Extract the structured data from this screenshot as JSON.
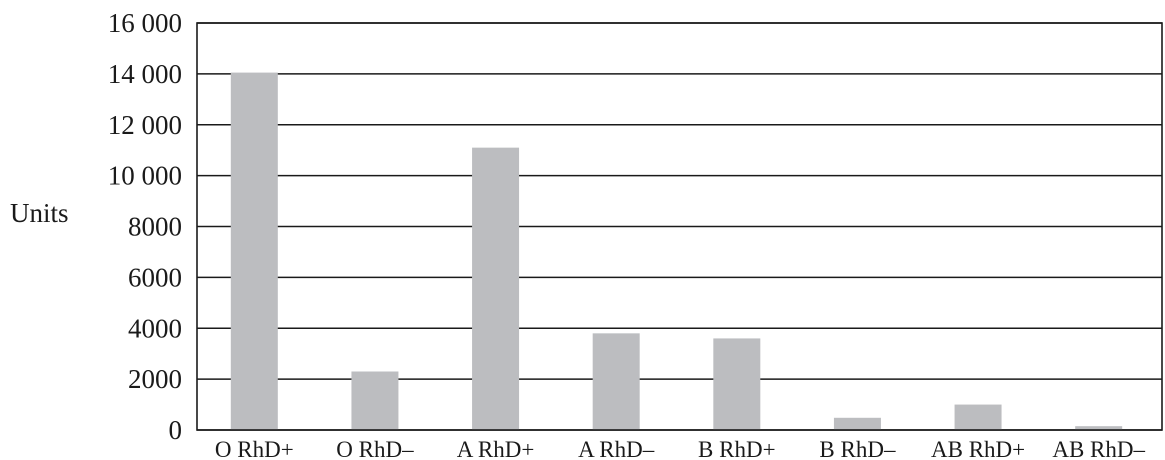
{
  "chart_data": {
    "type": "bar",
    "categories": [
      "O RhD+",
      "O RhD–",
      "A RhD+",
      "A RhD–",
      "B RhD+",
      "B RhD–",
      "AB RhD+",
      "AB RhD–"
    ],
    "values": [
      14050,
      2300,
      11100,
      3800,
      3600,
      480,
      1000,
      150
    ],
    "title": "",
    "xlabel": "",
    "ylabel": "Units",
    "ylim": [
      0,
      16000
    ],
    "yticks": [
      0,
      2000,
      4000,
      6000,
      8000,
      10000,
      12000,
      14000,
      16000
    ],
    "ytick_labels": [
      "0",
      "2000",
      "4000",
      "6000",
      "8000",
      "10 000",
      "12 000",
      "14 000",
      "16 000"
    ],
    "grid": true,
    "legend": "none",
    "bar_color": "#bcbdc0"
  }
}
